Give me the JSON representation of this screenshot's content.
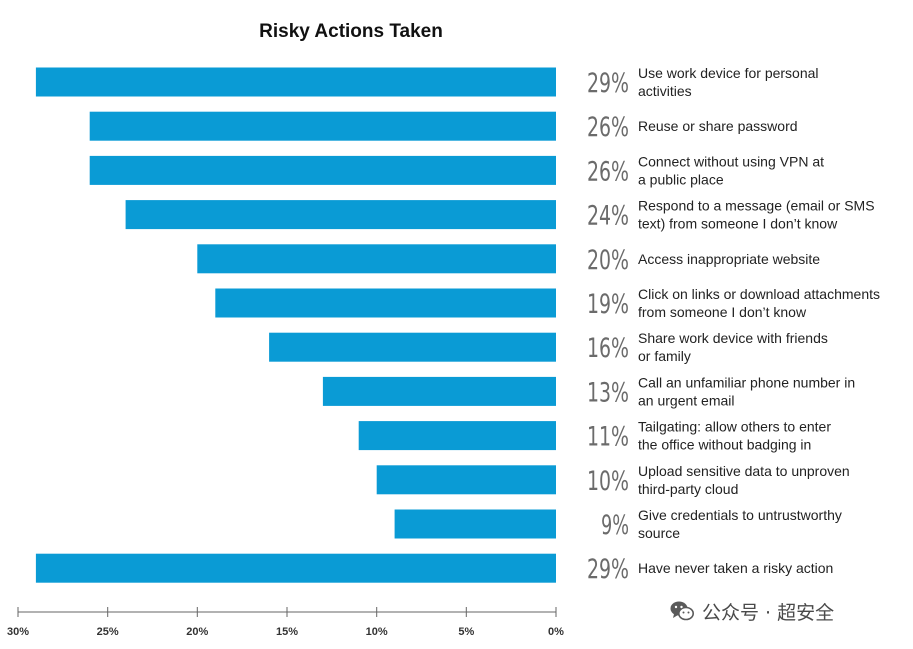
{
  "watermark": {
    "text": "公众号 · 超安全",
    "icon": "wechat-icon"
  },
  "chart_data": {
    "type": "bar",
    "orientation": "horizontal",
    "title": "Risky Actions Taken",
    "bar_color": "#0a9bd5",
    "xlabel": "",
    "ylabel": "",
    "xlim": [
      0,
      30
    ],
    "x_direction": "reversed",
    "x_ticks": [
      "30%",
      "25%",
      "20%",
      "15%",
      "10%",
      "5%",
      "0%"
    ],
    "x_tick_values": [
      30,
      25,
      20,
      15,
      10,
      5,
      0
    ],
    "grid": false,
    "legend": "none",
    "categories": [
      [
        "Use work device for personal",
        "activities"
      ],
      [
        "Reuse or share password"
      ],
      [
        "Connect without using VPN at",
        "a public place"
      ],
      [
        "Respond to a message (email or SMS",
        "text) from someone I don’t know"
      ],
      [
        "Access inappropriate website"
      ],
      [
        "Click on links or download attachments",
        "from someone I don’t know"
      ],
      [
        "Share work device with friends",
        "or family"
      ],
      [
        "Call an unfamiliar phone number in",
        "an urgent email"
      ],
      [
        "Tailgating: allow others to enter",
        "the office without badging in"
      ],
      [
        "Upload sensitive data to unproven",
        "third-party cloud"
      ],
      [
        "Give credentials to untrustworthy",
        "source"
      ],
      [
        "Have never taken a risky action"
      ]
    ],
    "values": [
      29,
      26,
      26,
      24,
      20,
      19,
      16,
      13,
      11,
      10,
      9,
      29
    ],
    "value_labels": [
      "29%",
      "26%",
      "26%",
      "24%",
      "20%",
      "19%",
      "16%",
      "13%",
      "11%",
      "10%",
      "9%",
      "29%"
    ]
  }
}
